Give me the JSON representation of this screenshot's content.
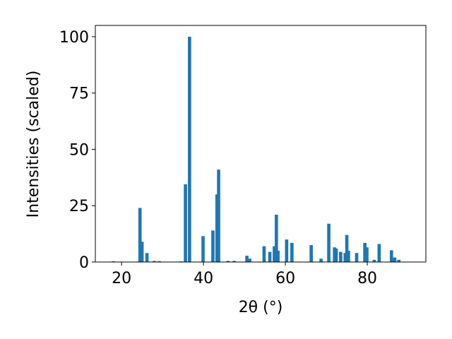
{
  "chart_data": {
    "type": "bar",
    "xlabel": "2θ (°)",
    "ylabel": "Intensities (scaled)",
    "x": [
      18.0,
      24.5,
      25.0,
      26.2,
      28.0,
      29.2,
      34.5,
      35.6,
      36.6,
      39.9,
      42.3,
      43.3,
      43.7,
      46.0,
      47.5,
      50.6,
      51.3,
      54.8,
      56.2,
      57.3,
      57.8,
      58.2,
      60.3,
      61.6,
      66.3,
      68.7,
      70.6,
      72.0,
      72.4,
      73.5,
      74.6,
      75.0,
      75.4,
      77.4,
      79.4,
      79.9,
      81.7,
      82.9,
      85.9,
      86.7,
      87.7
    ],
    "values": [
      0.3,
      24,
      9,
      4,
      0.5,
      0.4,
      0.3,
      34.5,
      100,
      11.5,
      14,
      30,
      41,
      0.5,
      0.5,
      2.8,
      1.5,
      7,
      4.5,
      7,
      21,
      5,
      10,
      8.5,
      7.5,
      1.5,
      17,
      6.5,
      6,
      4.5,
      4,
      12,
      5,
      4,
      8.5,
      6.5,
      1,
      8,
      5.2,
      2,
      1
    ],
    "color": "#1f77b4",
    "xlim": [
      13.6,
      94.3
    ],
    "xticks": [
      20,
      40,
      60,
      80
    ],
    "ylim": [
      0,
      105
    ],
    "yticks": [
      0,
      25,
      50,
      75,
      100
    ]
  }
}
